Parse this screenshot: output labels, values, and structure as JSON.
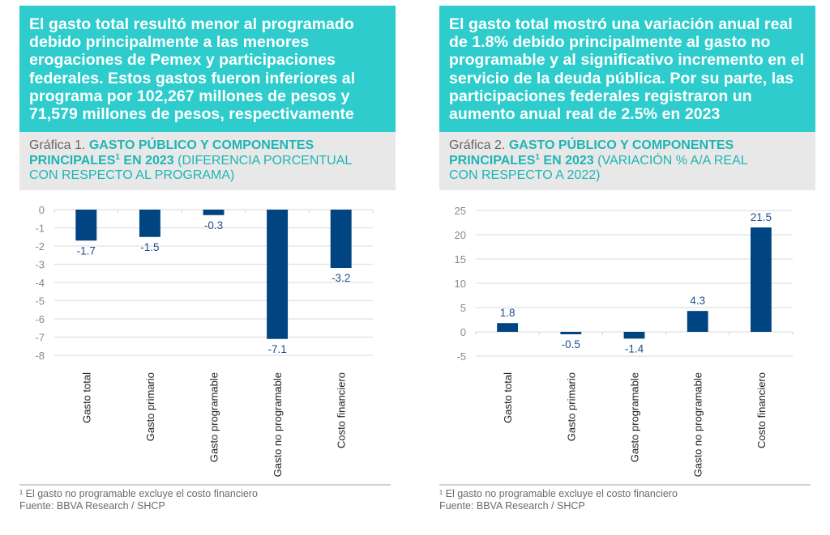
{
  "panels": [
    {
      "headline": "El gasto total resultó menor al programado debido principalmente a las menores erogaciones de Pemex y participaciones federales. Estos gastos fueron inferiores al programa por 102,267 millones de pesos y 71,579 millones de pesos, respectivamente",
      "headline_lines": [
        "El gasto total resultó menor al programado",
        "debido principalmente a las menores",
        "erogaciones de Pemex y participaciones",
        "federales. Estos gastos fueron inferiores al",
        "programa por 102,267 millones de pesos y",
        "71,579 millones de pesos, respectivamente"
      ],
      "chart_label": "Gráfica 1.",
      "chart_title_bold_1": "GASTO PÚBLICO Y COMPONENTES",
      "chart_title_bold_2": "PRINCIPALES",
      "chart_title_sup": "1",
      "chart_title_bold_3": "EN 2023",
      "chart_title_rest_1": "(DIFERENCIA PORCENTUAL",
      "chart_title_rest_2": "CON RESPECTO AL PROGRAMA)",
      "footnote": "¹ El gasto no programable excluye el costo financiero",
      "source": "Fuente: BBVA Research / SHCP"
    },
    {
      "headline": "El gasto total mostró una variación anual real de 1.8% debido principalmente al gasto no programable y al significativo incremento en el servicio de la deuda pública. Por su parte, las participaciones federales registraron un aumento anual real de 2.5% en 2023",
      "headline_lines": [
        "El gasto total mostró una variación anual real",
        "de 1.8% debido principalmente al gasto no",
        "programable y al significativo incremento en el",
        "servicio de la deuda pública. Por su parte, las",
        "participaciones federales registraron un",
        "aumento anual real de 2.5% en 2023"
      ],
      "chart_label": "Gráfica 2.",
      "chart_title_bold_1": "GASTO PÚBLICO Y COMPONENTES",
      "chart_title_bold_2": "PRINCIPALES",
      "chart_title_sup": "1",
      "chart_title_bold_3": "EN 2023",
      "chart_title_rest_1": "(VARIACIÓN % A/A REAL",
      "chart_title_rest_2": "CON RESPECTO A 2022)",
      "footnote": "¹ El gasto no programable excluye el costo financiero",
      "source": "Fuente: BBVA Research / SHCP"
    }
  ],
  "colors": {
    "headline_bg": "#2ecccc",
    "title_teal": "#1fb5b5",
    "bar": "#004481",
    "data_label": "#1f4e8c",
    "grid": "#e0e0e0",
    "axis_text": "#888888"
  },
  "chart_data": [
    {
      "type": "bar",
      "title": "Gráfica 1. GASTO PÚBLICO Y COMPONENTES PRINCIPALES¹ EN 2023 (DIFERENCIA PORCENTUAL CON RESPECTO AL PROGRAMA)",
      "categories": [
        "Gasto total",
        "Gasto primario",
        "Gasto programable",
        "Gasto no programable",
        "Costo financiero"
      ],
      "values": [
        -1.7,
        -1.5,
        -0.3,
        -7.1,
        -3.2
      ],
      "data_labels": [
        "-1.7",
        "-1.5",
        "-0.3",
        "-7.1",
        "-3.2"
      ],
      "xlabel": "",
      "ylabel": "",
      "ylim": [
        -8,
        0
      ],
      "yticks": [
        0,
        -1,
        -2,
        -3,
        -4,
        -5,
        -6,
        -7,
        -8
      ],
      "grid": true,
      "legend": "none"
    },
    {
      "type": "bar",
      "title": "Gráfica 2. GASTO PÚBLICO Y COMPONENTES PRINCIPALES¹ EN 2023 (VARIACIÓN % A/A REAL CON RESPECTO A 2022)",
      "categories": [
        "Gasto total",
        "Gasto primario",
        "Gasto programable",
        "Gasto no programable",
        "Costo financiero"
      ],
      "values": [
        1.8,
        -0.5,
        -1.4,
        4.3,
        21.5
      ],
      "data_labels": [
        "1.8",
        "-0.5",
        "-1.4",
        "4.3",
        "21.5"
      ],
      "xlabel": "",
      "ylabel": "",
      "ylim": [
        -5,
        25
      ],
      "yticks": [
        25,
        20,
        15,
        10,
        5,
        0,
        -5
      ],
      "grid": true,
      "legend": "none"
    }
  ]
}
